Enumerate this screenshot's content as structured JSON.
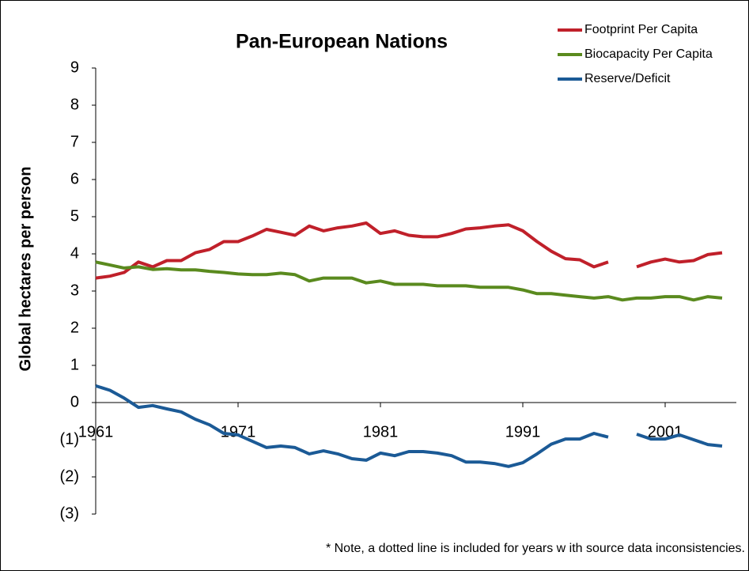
{
  "chart_data": {
    "type": "line",
    "title": "Pan-European Nations",
    "y_label": "Global hectares per person",
    "note": "* Note, a dotted line is included for years w ith source data inconsistencies.",
    "x": [
      1961,
      1962,
      1963,
      1964,
      1965,
      1966,
      1967,
      1968,
      1969,
      1970,
      1971,
      1972,
      1973,
      1974,
      1975,
      1976,
      1977,
      1978,
      1979,
      1980,
      1981,
      1982,
      1983,
      1984,
      1985,
      1986,
      1987,
      1988,
      1989,
      1990,
      1991,
      1992,
      1993,
      1994,
      1995,
      1996,
      1997,
      1998,
      1999,
      2000,
      2001,
      2002,
      2003,
      2004,
      2005
    ],
    "series": [
      {
        "name": "Footprint Per Capita",
        "color": "#c0202a",
        "values": [
          3.35,
          3.4,
          3.5,
          3.78,
          3.65,
          3.82,
          3.82,
          4.03,
          4.12,
          4.33,
          4.33,
          4.48,
          4.66,
          4.58,
          4.5,
          4.75,
          4.62,
          4.7,
          4.75,
          4.83,
          4.55,
          4.62,
          4.5,
          4.46,
          4.46,
          4.55,
          4.67,
          4.7,
          4.75,
          4.78,
          4.62,
          4.33,
          4.07,
          3.87,
          3.84,
          3.65,
          3.78,
          null,
          3.65,
          3.78,
          3.86,
          3.78,
          3.82,
          3.98,
          4.03
        ]
      },
      {
        "name": "Biocapacity Per Capita",
        "color": "#5a8a1e",
        "values": [
          3.78,
          3.7,
          3.62,
          3.65,
          3.58,
          3.6,
          3.57,
          3.57,
          3.53,
          3.5,
          3.46,
          3.44,
          3.44,
          3.48,
          3.44,
          3.27,
          3.35,
          3.35,
          3.35,
          3.22,
          3.27,
          3.18,
          3.18,
          3.18,
          3.14,
          3.14,
          3.14,
          3.1,
          3.1,
          3.1,
          3.03,
          2.93,
          2.93,
          2.89,
          2.85,
          2.81,
          2.85,
          2.76,
          2.81,
          2.81,
          2.85,
          2.85,
          2.76,
          2.85,
          2.81
        ]
      },
      {
        "name": "Reserve/Deficit",
        "color": "#1b5a96",
        "values": [
          0.45,
          0.33,
          0.12,
          -0.13,
          -0.08,
          -0.17,
          -0.25,
          -0.45,
          -0.6,
          -0.83,
          -0.87,
          -1.04,
          -1.21,
          -1.17,
          -1.21,
          -1.38,
          -1.3,
          -1.38,
          -1.51,
          -1.55,
          -1.36,
          -1.43,
          -1.32,
          -1.32,
          -1.36,
          -1.43,
          -1.6,
          -1.6,
          -1.64,
          -1.72,
          -1.62,
          -1.38,
          -1.12,
          -0.98,
          -0.98,
          -0.83,
          -0.93,
          null,
          -0.85,
          -0.98,
          -0.98,
          -0.87,
          -1.0,
          -1.13,
          -1.17
        ]
      }
    ],
    "xlim": [
      1961,
      2005
    ],
    "xticks": [
      1961,
      1971,
      1981,
      1991,
      2001
    ],
    "ylim": [
      -3,
      9
    ],
    "yticks": [
      {
        "value": -3,
        "label": "(3)"
      },
      {
        "value": -2,
        "label": "(2)"
      },
      {
        "value": -1,
        "label": "(1)"
      },
      0,
      1,
      2,
      3,
      4,
      5,
      6,
      7,
      8,
      9
    ],
    "grid": false,
    "legend": "top-right"
  }
}
